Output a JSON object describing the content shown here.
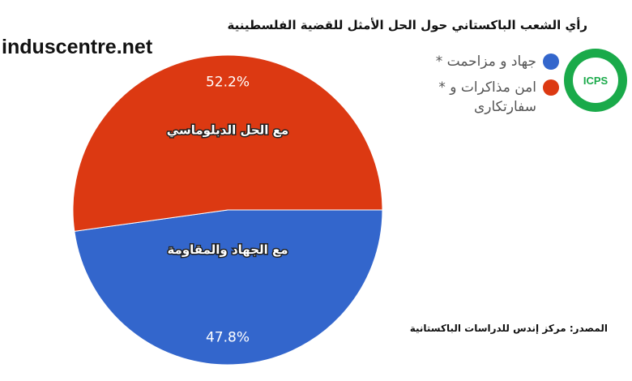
{
  "watermark": "induscentre.net",
  "source": "المصدر: مركز إندس للدراسات الباكستانية",
  "logo_text": "ICPS",
  "colors": {
    "jihad": "#3366cc",
    "diplomacy": "#dc3912"
  },
  "chart_data": {
    "type": "pie",
    "title": "رأي الشعب الباكستاني حول الحل الأمثل للقضية الفلسطينية",
    "slices": [
      {
        "label": "جهاد و مزاحمت *",
        "value": 47.8,
        "value_label": "47.8%",
        "inner_label": "مع الجهاد والمقاومة",
        "color": "#3366cc"
      },
      {
        "label": "امن مذاکرات و * سفارتکاری",
        "value": 52.2,
        "value_label": "52.2%",
        "inner_label": "مع الحل الدبلوماسي",
        "color": "#dc3912"
      }
    ],
    "legend_position": "top-right"
  }
}
